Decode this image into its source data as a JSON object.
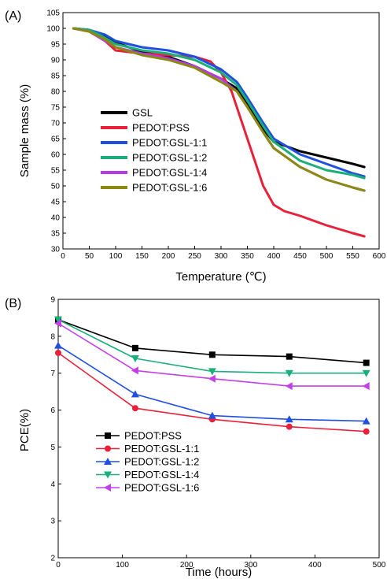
{
  "chart_data": [
    {
      "type": "line",
      "panel_label": "(A)",
      "xlabel": "Temperature (℃)",
      "ylabel": "Sample mass (%)",
      "xlim": [
        0,
        600
      ],
      "ylim": [
        30,
        105
      ],
      "xticks": [
        0,
        50,
        100,
        150,
        200,
        250,
        300,
        350,
        400,
        450,
        500,
        550,
        600
      ],
      "yticks": [
        30,
        35,
        40,
        45,
        50,
        55,
        60,
        65,
        70,
        75,
        80,
        85,
        90,
        95,
        100,
        105
      ],
      "grid": false,
      "legend_position": "left-center",
      "series": [
        {
          "name": "GSL",
          "color": "#000000",
          "x": [
            20,
            50,
            80,
            100,
            150,
            200,
            250,
            300,
            330,
            350,
            380,
            400,
            450,
            500,
            550,
            572
          ],
          "y": [
            100,
            99.5,
            97.5,
            95.5,
            92.5,
            91,
            88,
            84,
            81,
            76,
            68,
            64,
            61,
            59,
            57,
            56
          ]
        },
        {
          "name": "PEDOT:PSS",
          "color": "#e8203a",
          "x": [
            20,
            50,
            80,
            100,
            150,
            200,
            250,
            280,
            300,
            320,
            340,
            360,
            380,
            400,
            420,
            450,
            500,
            550,
            572
          ],
          "y": [
            100,
            99,
            96,
            93,
            92,
            91.5,
            91,
            89.5,
            86,
            80,
            70,
            60,
            50,
            44,
            42,
            40.5,
            37.5,
            35,
            34
          ]
        },
        {
          "name": "PEDOT:GSL-1:1",
          "color": "#1f4fe0",
          "x": [
            20,
            50,
            80,
            100,
            150,
            200,
            250,
            300,
            330,
            350,
            380,
            400,
            450,
            500,
            550,
            572
          ],
          "y": [
            100,
            99.5,
            98,
            96,
            94,
            93,
            91,
            87,
            83,
            78,
            70,
            65,
            60,
            57,
            54,
            53
          ]
        },
        {
          "name": "PEDOT:GSL-1:2",
          "color": "#1aaf7a",
          "x": [
            20,
            50,
            80,
            100,
            150,
            200,
            250,
            300,
            330,
            350,
            380,
            400,
            450,
            500,
            550,
            572
          ],
          "y": [
            100,
            99.5,
            97,
            95,
            93,
            92,
            90,
            86,
            82,
            77,
            69,
            64,
            58,
            55,
            53.5,
            52.5
          ]
        },
        {
          "name": "PEDOT:GSL-1:4",
          "color": "#b73ae6",
          "x": [
            20,
            50,
            80,
            100,
            150,
            200,
            250,
            300,
            330,
            350,
            380,
            400,
            450,
            500,
            550,
            572
          ],
          "y": [
            100,
            99,
            96,
            94,
            92,
            90.5,
            88,
            84,
            80,
            75,
            67,
            62,
            56,
            52,
            49.5,
            48.5
          ]
        },
        {
          "name": "PEDOT:GSL-1:6",
          "color": "#8a8a10",
          "x": [
            20,
            50,
            80,
            100,
            150,
            200,
            250,
            300,
            330,
            350,
            380,
            400,
            450,
            500,
            550,
            572
          ],
          "y": [
            100,
            99,
            96.5,
            94,
            91.5,
            90,
            87.5,
            83,
            80,
            75,
            67,
            62,
            56,
            52,
            49.5,
            48.5
          ]
        }
      ]
    },
    {
      "type": "line",
      "panel_label": "(B)",
      "xlabel": "Time (hours)",
      "ylabel": "PCE(%)",
      "xlim": [
        0,
        500
      ],
      "ylim": [
        2,
        9
      ],
      "xticks": [
        0,
        100,
        200,
        300,
        400,
        500
      ],
      "yticks": [
        2,
        3,
        4,
        5,
        6,
        7,
        8,
        9
      ],
      "grid": false,
      "legend_position": "bottom-left",
      "series": [
        {
          "name": "PEDOT:PSS",
          "color": "#000000",
          "marker": "square",
          "x": [
            0,
            120,
            240,
            360,
            480
          ],
          "y": [
            8.45,
            7.68,
            7.5,
            7.45,
            7.28
          ]
        },
        {
          "name": "PEDOT:GSL-1:1",
          "color": "#e8203a",
          "marker": "circle",
          "x": [
            0,
            120,
            240,
            360,
            480
          ],
          "y": [
            7.55,
            6.05,
            5.75,
            5.55,
            5.42
          ]
        },
        {
          "name": "PEDOT:GSL-1:2",
          "color": "#1f4fe0",
          "marker": "triangle-up",
          "x": [
            0,
            120,
            240,
            360,
            480
          ],
          "y": [
            7.75,
            6.43,
            5.85,
            5.75,
            5.7
          ]
        },
        {
          "name": "PEDOT:GSL-1:4",
          "color": "#1aaf7a",
          "marker": "triangle-down",
          "x": [
            0,
            120,
            240,
            360,
            480
          ],
          "y": [
            8.45,
            7.4,
            7.05,
            7.0,
            7.0
          ]
        },
        {
          "name": "PEDOT:GSL-1:6",
          "color": "#c340e8",
          "marker": "triangle-left",
          "x": [
            0,
            120,
            240,
            360,
            480
          ],
          "y": [
            8.35,
            7.07,
            6.85,
            6.65,
            6.65
          ]
        }
      ]
    }
  ]
}
